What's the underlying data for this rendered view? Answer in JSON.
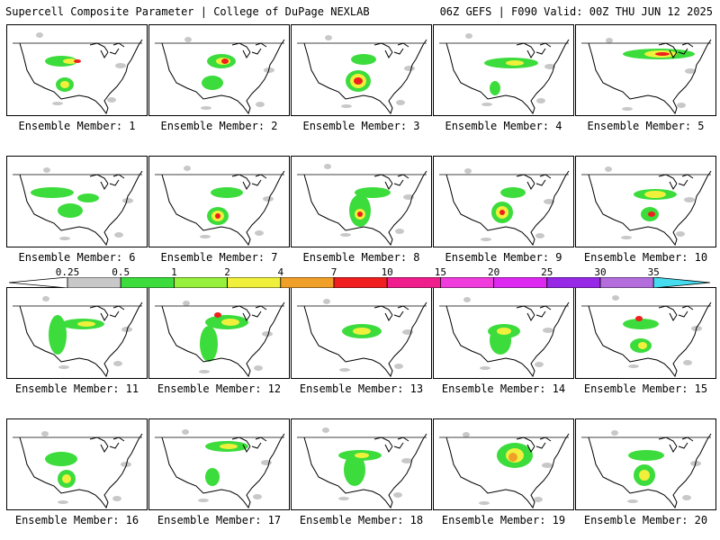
{
  "header": {
    "left_title": "Supercell Composite Parameter | College of DuPage NEXLAB",
    "right_title": "06Z GEFS | F090 Valid: 00Z THU JUN 12 2025"
  },
  "legend": {
    "labels": [
      "0.25",
      "0.5",
      "1",
      "2",
      "4",
      "7",
      "10",
      "15",
      "20",
      "25",
      "30",
      "35"
    ],
    "colors": [
      "#c8c8c8",
      "#3cdc3c",
      "#96f03c",
      "#f0f03c",
      "#f0a028",
      "#f01e1e",
      "#f01e8c",
      "#f03cdc",
      "#dc28f0",
      "#9628e6",
      "#b46edc",
      "#46dcf0"
    ]
  },
  "panels": [
    {
      "label": "Ensemble Member: 1"
    },
    {
      "label": "Ensemble Member: 2"
    },
    {
      "label": "Ensemble Member: 3"
    },
    {
      "label": "Ensemble Member: 4"
    },
    {
      "label": "Ensemble Member: 5"
    },
    {
      "label": "Ensemble Member: 6"
    },
    {
      "label": "Ensemble Member: 7"
    },
    {
      "label": "Ensemble Member: 8"
    },
    {
      "label": "Ensemble Member: 9"
    },
    {
      "label": "Ensemble Member: 10"
    },
    {
      "label": "Ensemble Member: 11"
    },
    {
      "label": "Ensemble Member: 12"
    },
    {
      "label": "Ensemble Member: 13"
    },
    {
      "label": "Ensemble Member: 14"
    },
    {
      "label": "Ensemble Member: 15"
    },
    {
      "label": "Ensemble Member: 16"
    },
    {
      "label": "Ensemble Member: 17"
    },
    {
      "label": "Ensemble Member: 18"
    },
    {
      "label": "Ensemble Member: 19"
    },
    {
      "label": "Ensemble Member: 20"
    }
  ]
}
